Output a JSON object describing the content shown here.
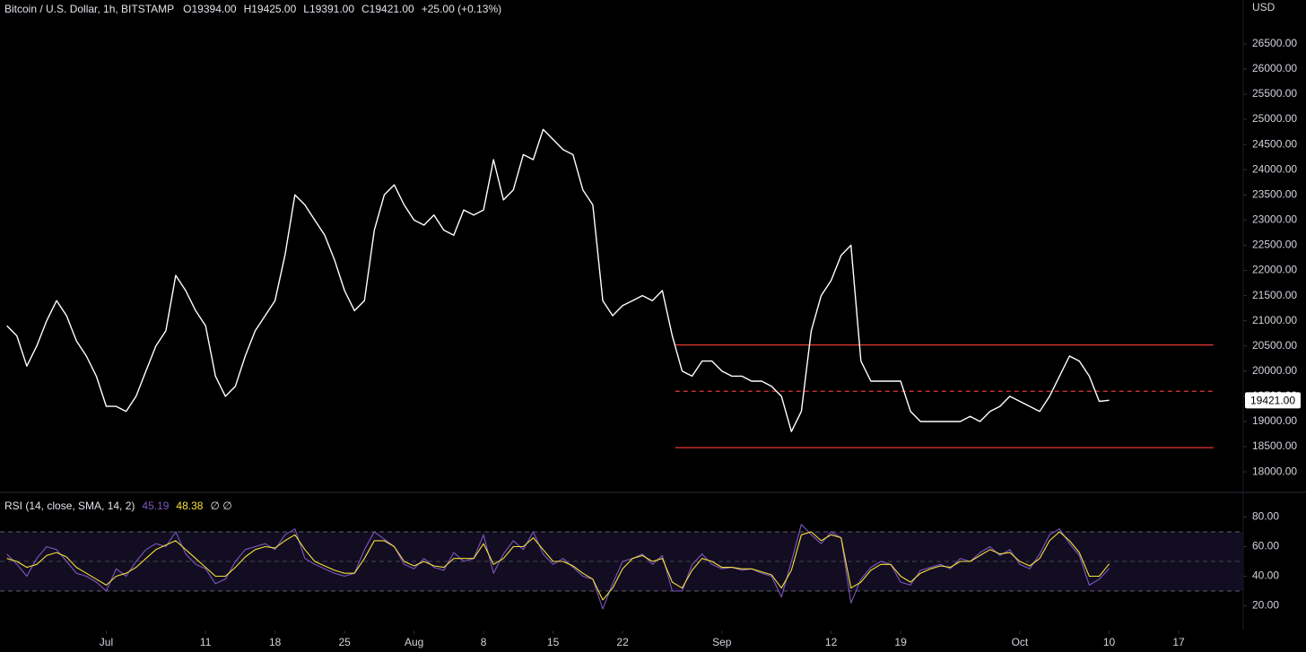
{
  "chart_data": [
    {
      "type": "line",
      "title": "Bitcoin / U.S. Dollar, 1h, BITSTAMP",
      "ohlc": [
        "O19394.00",
        "H19425.00",
        "L19391.00",
        "C19421.00",
        "+25.00 (+0.13%)"
      ],
      "y_axis_label": "USD",
      "xlim": [
        -10.7,
        114.5
      ],
      "ylim": [
        17610,
        27370
      ],
      "yticks": [
        {
          "value": 18000,
          "label": "18000.00"
        },
        {
          "value": 18500,
          "label": "18500.00"
        },
        {
          "value": 19000,
          "label": "19000.00"
        },
        {
          "value": 19500,
          "label": "19500.00"
        },
        {
          "value": 20000,
          "label": "20000.00"
        },
        {
          "value": 20500,
          "label": "20500.00"
        },
        {
          "value": 21000,
          "label": "21000.00"
        },
        {
          "value": 21500,
          "label": "21500.00"
        },
        {
          "value": 22000,
          "label": "22000.00"
        },
        {
          "value": 22500,
          "label": "22500.00"
        },
        {
          "value": 23000,
          "label": "23000.00"
        },
        {
          "value": 23500,
          "label": "23500.00"
        },
        {
          "value": 24000,
          "label": "24000.00"
        },
        {
          "value": 24500,
          "label": "24500.00"
        },
        {
          "value": 25000,
          "label": "25000.00"
        },
        {
          "value": 25500,
          "label": "25500.00"
        },
        {
          "value": 26000,
          "label": "26000.00"
        },
        {
          "value": 26500,
          "label": "26500.00"
        }
      ],
      "x": [
        -10,
        -9,
        -8,
        -7,
        -6,
        -5,
        -4,
        -3,
        -2,
        -1,
        0,
        1,
        2,
        3,
        4,
        5,
        6,
        7,
        8,
        9,
        10,
        11,
        12,
        13,
        14,
        15,
        16,
        17,
        18,
        19,
        20,
        21,
        22,
        23,
        24,
        25,
        26,
        27,
        28,
        29,
        30,
        31,
        32,
        33,
        34,
        35,
        36,
        37,
        38,
        39,
        40,
        41,
        42,
        43,
        44,
        45,
        46,
        47,
        48,
        49,
        50,
        51,
        52,
        53,
        54,
        55,
        56,
        57,
        58,
        59,
        60,
        61,
        62,
        63,
        64,
        65,
        66,
        67,
        68,
        69,
        70,
        71,
        72,
        73,
        74,
        75,
        76,
        77,
        78,
        79,
        80,
        81,
        82,
        83,
        84,
        85,
        86,
        87,
        88,
        89,
        90,
        91,
        92,
        93,
        94,
        95,
        96,
        97,
        98,
        99,
        100,
        101
      ],
      "series": [
        {
          "color": "#ffffff",
          "values": [
            20900,
            20700,
            20100,
            20500,
            21000,
            21400,
            21100,
            20600,
            20300,
            19900,
            19300,
            19300,
            19200,
            19500,
            20000,
            20500,
            20800,
            21900,
            21600,
            21200,
            20900,
            19900,
            19500,
            19700,
            20300,
            20800,
            21100,
            21400,
            22300,
            23500,
            23300,
            23000,
            22700,
            22200,
            21600,
            21200,
            21400,
            22800,
            23500,
            23700,
            23300,
            23000,
            22900,
            23100,
            22800,
            22700,
            23200,
            23100,
            23200,
            24200,
            23400,
            23600,
            24300,
            24200,
            24800,
            24600,
            24400,
            24300,
            23600,
            23300,
            21400,
            21100,
            21300,
            21400,
            21500,
            21400,
            21600,
            20700,
            20000,
            19900,
            20200,
            20200,
            20000,
            19900,
            19900,
            19800,
            19800,
            19700,
            19500,
            18800,
            19200,
            20800,
            21500,
            21800,
            22300,
            22500,
            20200,
            19800,
            19800,
            19800,
            19800,
            19200,
            19000,
            19000,
            19000,
            19000,
            19000,
            19100,
            19000,
            19200,
            19300,
            19500,
            19400,
            19300,
            19200,
            19500,
            19900,
            20300,
            20200,
            19900,
            19400,
            19421
          ]
        }
      ],
      "hlines": [
        {
          "value": 20520,
          "style": "solid",
          "color": "#e53935"
        },
        {
          "value": 19600,
          "style": "dashed",
          "color": "#e53935"
        },
        {
          "value": 18480,
          "style": "solid",
          "color": "#e53935"
        }
      ],
      "hline_x": [
        57.3,
        111.5
      ],
      "last_price": {
        "value": 19421,
        "label": "19421.00"
      }
    },
    {
      "type": "line",
      "title": "RSI (14, close, SMA, 14, 2)",
      "legend_extra": "∅ ∅",
      "xlim": [
        -10.7,
        114.5
      ],
      "ylim": [
        4,
        96
      ],
      "yticks": [
        {
          "value": 20,
          "label": "20.00"
        },
        {
          "value": 40,
          "label": "40.00"
        },
        {
          "value": 60,
          "label": "60.00"
        },
        {
          "value": 80,
          "label": "80.00"
        }
      ],
      "band": [
        30,
        70
      ],
      "midline": 50,
      "band_color": "#120d20",
      "xticks": [
        {
          "value": 0,
          "label": "Jul"
        },
        {
          "value": 10,
          "label": "11"
        },
        {
          "value": 17,
          "label": "18"
        },
        {
          "value": 24,
          "label": "25"
        },
        {
          "value": 31,
          "label": "Aug"
        },
        {
          "value": 38,
          "label": "8"
        },
        {
          "value": 45,
          "label": "15"
        },
        {
          "value": 52,
          "label": "22"
        },
        {
          "value": 62,
          "label": "Sep"
        },
        {
          "value": 73,
          "label": "12"
        },
        {
          "value": 80,
          "label": "19"
        },
        {
          "value": 92,
          "label": "Oct"
        },
        {
          "value": 101,
          "label": "10"
        },
        {
          "value": 108,
          "label": "17"
        }
      ],
      "x": [
        -10,
        -9,
        -8,
        -7,
        -6,
        -5,
        -4,
        -3,
        -2,
        -1,
        0,
        1,
        2,
        3,
        4,
        5,
        6,
        7,
        8,
        9,
        10,
        11,
        12,
        13,
        14,
        15,
        16,
        17,
        18,
        19,
        20,
        21,
        22,
        23,
        24,
        25,
        26,
        27,
        28,
        29,
        30,
        31,
        32,
        33,
        34,
        35,
        36,
        37,
        38,
        39,
        40,
        41,
        42,
        43,
        44,
        45,
        46,
        47,
        48,
        49,
        50,
        51,
        52,
        53,
        54,
        55,
        56,
        57,
        58,
        59,
        60,
        61,
        62,
        63,
        64,
        65,
        66,
        67,
        68,
        69,
        70,
        71,
        72,
        73,
        74,
        75,
        76,
        77,
        78,
        79,
        80,
        81,
        82,
        83,
        84,
        85,
        86,
        87,
        88,
        89,
        90,
        91,
        92,
        93,
        94,
        95,
        96,
        97,
        98,
        99,
        100,
        101
      ],
      "series": [
        {
          "color": "#7e57c2",
          "last_label": "45.19",
          "values": [
            55,
            48,
            40,
            52,
            60,
            58,
            50,
            42,
            40,
            36,
            30,
            45,
            40,
            50,
            58,
            62,
            60,
            70,
            55,
            48,
            45,
            35,
            38,
            50,
            58,
            60,
            62,
            58,
            68,
            72,
            52,
            48,
            45,
            42,
            40,
            42,
            58,
            70,
            65,
            60,
            48,
            45,
            52,
            46,
            44,
            56,
            50,
            52,
            68,
            42,
            55,
            64,
            58,
            70,
            55,
            48,
            52,
            46,
            40,
            38,
            18,
            35,
            50,
            52,
            55,
            48,
            54,
            30,
            30,
            48,
            55,
            48,
            45,
            46,
            44,
            45,
            42,
            40,
            26,
            50,
            75,
            68,
            62,
            70,
            66,
            22,
            38,
            46,
            50,
            48,
            36,
            34,
            44,
            46,
            48,
            45,
            52,
            50,
            56,
            60,
            54,
            58,
            48,
            45,
            55,
            68,
            72,
            62,
            54,
            34,
            38,
            45.19
          ]
        },
        {
          "color": "#f5e13a",
          "last_label": "48.38",
          "values": [
            52,
            50,
            46,
            48,
            54,
            56,
            53,
            46,
            42,
            38,
            34,
            40,
            42,
            46,
            52,
            58,
            61,
            64,
            58,
            52,
            46,
            40,
            40,
            46,
            53,
            58,
            60,
            59,
            64,
            68,
            58,
            50,
            47,
            44,
            42,
            42,
            52,
            64,
            64,
            60,
            50,
            47,
            50,
            47,
            46,
            52,
            52,
            52,
            62,
            48,
            52,
            60,
            60,
            66,
            58,
            50,
            50,
            47,
            42,
            38,
            24,
            32,
            45,
            52,
            54,
            50,
            52,
            36,
            32,
            44,
            52,
            50,
            46,
            46,
            45,
            45,
            43,
            41,
            32,
            44,
            68,
            70,
            64,
            68,
            66,
            32,
            36,
            44,
            48,
            48,
            40,
            36,
            42,
            45,
            47,
            46,
            50,
            50,
            54,
            58,
            55,
            56,
            50,
            47,
            52,
            64,
            70,
            64,
            56,
            40,
            40,
            48.38
          ]
        }
      ]
    }
  ]
}
